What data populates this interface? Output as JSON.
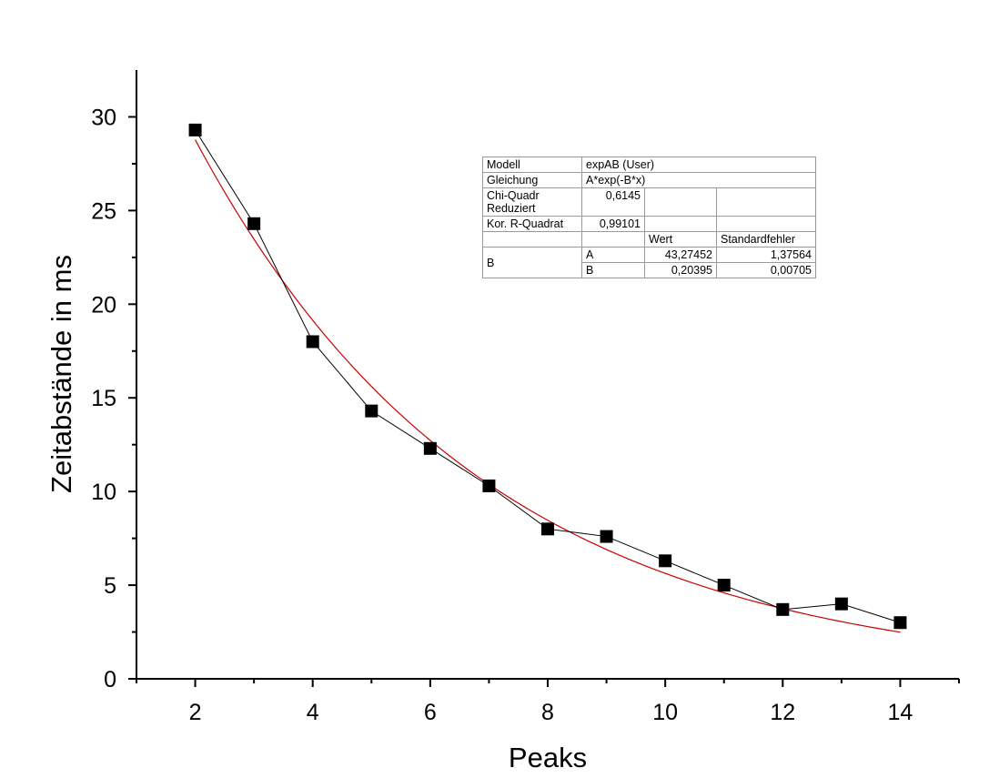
{
  "chart_data": {
    "type": "scatter",
    "title": "",
    "xlabel": "Peaks",
    "ylabel": "Zeitabstände in ms",
    "xlim": [
      1,
      15
    ],
    "ylim": [
      0,
      32.5
    ],
    "x_ticks": [
      2,
      4,
      6,
      8,
      10,
      12,
      14
    ],
    "y_ticks": [
      0,
      5,
      10,
      15,
      20,
      25,
      30
    ],
    "x_tick_labels": [
      "2",
      "4",
      "6",
      "8",
      "10",
      "12",
      "14"
    ],
    "y_tick_labels": [
      "0",
      "5",
      "10",
      "15",
      "20",
      "25",
      "30"
    ],
    "grid": false,
    "series": [
      {
        "color": "#000000",
        "marker": "square",
        "line": true,
        "x": [
          2,
          3,
          4,
          5,
          6,
          7,
          8,
          9,
          10,
          11,
          12,
          13,
          14
        ],
        "y": [
          29.3,
          24.3,
          18.0,
          14.3,
          12.3,
          10.3,
          8.0,
          7.6,
          6.3,
          5.0,
          3.7,
          4.0,
          3.0
        ]
      },
      {
        "color": "#cc0000",
        "marker": "none",
        "line": true,
        "model": "A*exp(-B*x)",
        "A": 43.27452,
        "B": 0.20395,
        "x_range": [
          2,
          14
        ]
      }
    ],
    "fit_table": {
      "modell_label": "Modell",
      "modell_value": "expAB (User)",
      "gleichung_label": "Gleichung",
      "gleichung_value": "A*exp(-B*x)",
      "chi_label_1": "Chi-Quadr",
      "chi_label_2": "Reduziert",
      "chi_value": "0,6145",
      "r_label": "Kor. R-Quadrat",
      "r_value": "0,99101",
      "col_wert": "Wert",
      "col_fehler": "Standardfehler",
      "group_label": "B",
      "param_a_name": "A",
      "param_a_wert": "43,27452",
      "param_a_fehler": "1,37564",
      "param_b_name": "B",
      "param_b_wert": "0,20395",
      "param_b_fehler": "0,00705"
    }
  }
}
